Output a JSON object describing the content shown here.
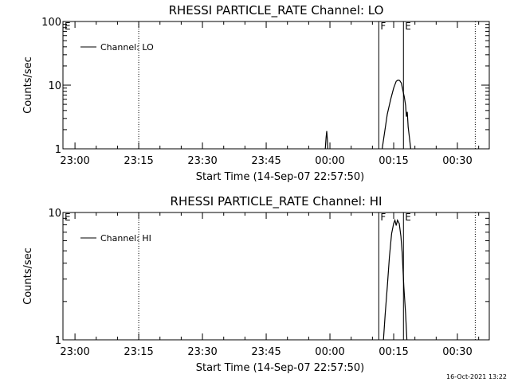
{
  "chart_data": [
    {
      "type": "line",
      "title": "RHESSI PARTICLE_RATE Channel: LO",
      "xlabel": "Start Time (14-Sep-07 22:57:50)",
      "ylabel": "Counts/sec",
      "yscale": "log",
      "ylim": [
        1,
        100
      ],
      "xlim_minutes": [
        -2.83,
        39.5
      ],
      "xtick_labels": [
        "23:00",
        "23:15",
        "23:30",
        "23:45",
        "00:00",
        "00:15",
        "00:30"
      ],
      "xtick_minutes": [
        0,
        15,
        30,
        45,
        60,
        75,
        90
      ],
      "ytick_labels": [
        "1",
        "10",
        "100"
      ],
      "ytick_values": [
        1,
        10,
        100
      ],
      "legend": {
        "label": "Channel: LO",
        "position": "top-left"
      },
      "markers": [
        {
          "label": "E",
          "minute": -2.83,
          "style": "dotted"
        },
        {
          "label": "",
          "minute": 15,
          "style": "dotted"
        },
        {
          "label": "F",
          "minute": 71.5,
          "style": "solid"
        },
        {
          "label": "E",
          "minute": 77.3,
          "style": "solid"
        },
        {
          "label": "",
          "minute": 94.2,
          "style": "dotted"
        }
      ],
      "series": [
        {
          "name": "Channel: LO",
          "segments": [
            [
              [
                58.9,
                1.0
              ],
              [
                59.1,
                1.5
              ],
              [
                59.25,
                1.9
              ],
              [
                59.4,
                1.4
              ],
              [
                59.5,
                1.0
              ]
            ],
            [
              [
                72.3,
                1.0
              ],
              [
                72.8,
                1.7
              ],
              [
                73.5,
                3.5
              ],
              [
                74.3,
                6.0
              ],
              [
                75.0,
                9.0
              ],
              [
                75.6,
                11.5
              ],
              [
                76.0,
                12.0
              ],
              [
                76.4,
                11.8
              ],
              [
                76.8,
                10.8
              ],
              [
                77.2,
                8.0
              ],
              [
                77.5,
                6.5
              ],
              [
                77.8,
                4.8
              ],
              [
                78.0,
                3.2
              ],
              [
                78.2,
                3.8
              ],
              [
                78.4,
                2.2
              ],
              [
                78.7,
                1.5
              ],
              [
                79.0,
                1.0
              ]
            ]
          ]
        }
      ]
    },
    {
      "type": "line",
      "title": "RHESSI PARTICLE_RATE Channel: HI",
      "xlabel": "Start Time (14-Sep-07 22:57:50)",
      "ylabel": "Counts/sec",
      "yscale": "log",
      "ylim": [
        1,
        10
      ],
      "xlim_minutes": [
        -2.83,
        39.5
      ],
      "xtick_labels": [
        "23:00",
        "23:15",
        "23:30",
        "23:45",
        "00:00",
        "00:15",
        "00:30"
      ],
      "xtick_minutes": [
        0,
        15,
        30,
        45,
        60,
        75,
        90
      ],
      "ytick_labels": [
        "1",
        "10"
      ],
      "ytick_values": [
        1,
        10
      ],
      "legend": {
        "label": "Channel: HI",
        "position": "top-left"
      },
      "markers": [
        {
          "label": "E",
          "minute": -2.83,
          "style": "dotted"
        },
        {
          "label": "",
          "minute": 15,
          "style": "dotted"
        },
        {
          "label": "F",
          "minute": 71.5,
          "style": "solid"
        },
        {
          "label": "E",
          "minute": 77.3,
          "style": "solid"
        },
        {
          "label": "",
          "minute": 94.2,
          "style": "dotted"
        }
      ],
      "series": [
        {
          "name": "Channel: HI",
          "segments": [
            [
              [
                72.6,
                1.0
              ],
              [
                73.0,
                1.6
              ],
              [
                73.5,
                2.6
              ],
              [
                74.0,
                4.5
              ],
              [
                74.5,
                6.8
              ],
              [
                75.0,
                8.2
              ],
              [
                75.3,
                8.7
              ],
              [
                75.6,
                7.9
              ],
              [
                75.9,
                8.7
              ],
              [
                76.3,
                8.2
              ],
              [
                76.7,
                6.5
              ],
              [
                77.0,
                4.8
              ],
              [
                77.4,
                2.6
              ],
              [
                77.8,
                1.6
              ],
              [
                78.1,
                1.0
              ]
            ]
          ]
        }
      ]
    }
  ],
  "footer": {
    "timestamp": "16-Oct-2021 13:22"
  }
}
